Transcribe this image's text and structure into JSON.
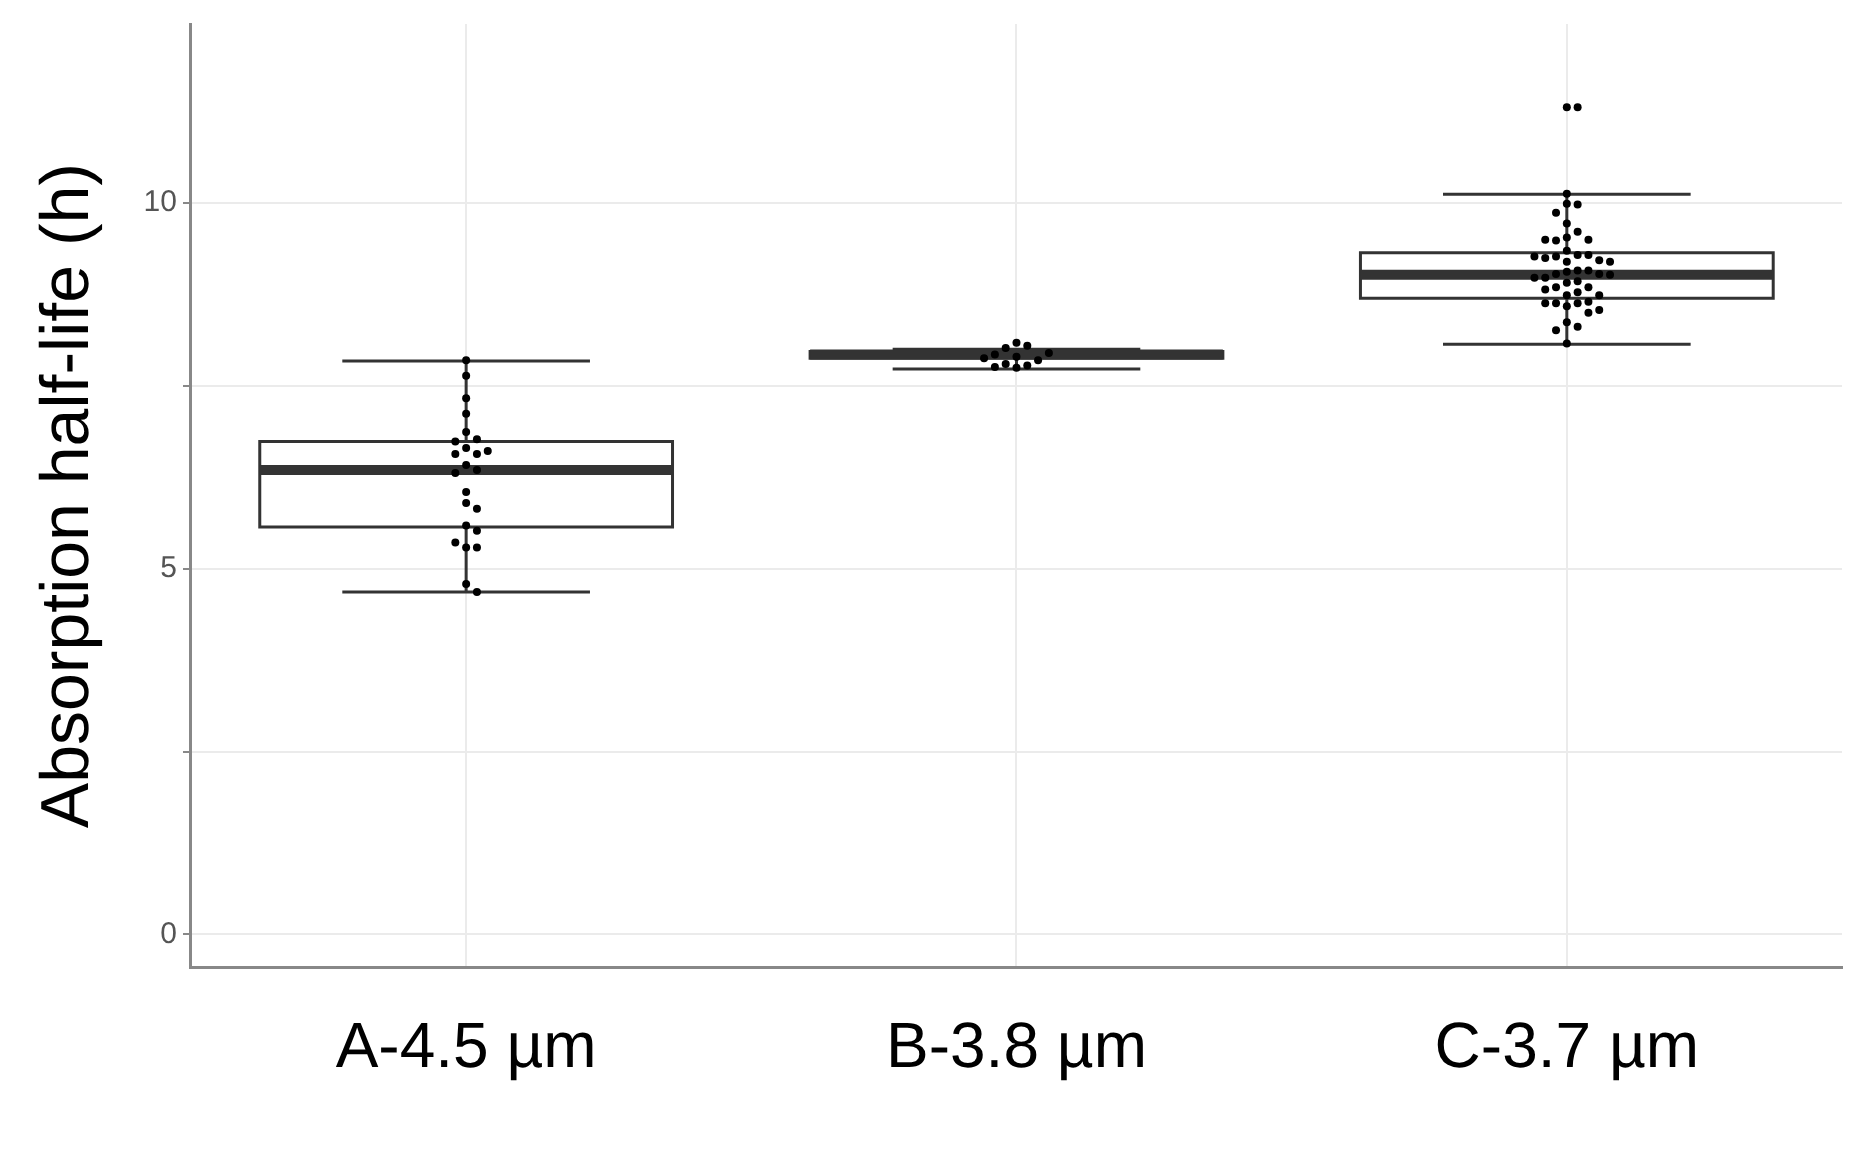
{
  "chart_data": {
    "type": "box",
    "ylabel": "Absorption half-life (h)",
    "categories": [
      "A-4.5 µm",
      "B-3.8 µm",
      "C-3.7 µm"
    ],
    "boxes": [
      {
        "low": 4.68,
        "q1": 5.57,
        "median": 6.35,
        "q3": 6.74,
        "high": 7.84
      },
      {
        "low": 7.73,
        "q1": 7.88,
        "median": 7.93,
        "q3": 7.97,
        "high": 8.0
      },
      {
        "low": 8.07,
        "q1": 8.7,
        "median": 9.02,
        "q3": 9.32,
        "high": 10.12,
        "outliers": [
          11.31,
          11.31
        ]
      }
    ],
    "series": [
      {
        "type": "scatter",
        "color": "#000000",
        "x": [
          "A-4.5 µm",
          "A-4.5 µm",
          "A-4.5 µm",
          "A-4.5 µm",
          "A-4.5 µm",
          "A-4.5 µm",
          "A-4.5 µm",
          "A-4.5 µm",
          "A-4.5 µm",
          "A-4.5 µm",
          "A-4.5 µm",
          "A-4.5 µm",
          "A-4.5 µm",
          "A-4.5 µm",
          "A-4.5 µm",
          "A-4.5 µm",
          "A-4.5 µm",
          "A-4.5 µm",
          "A-4.5 µm",
          "A-4.5 µm",
          "A-4.5 µm",
          "A-4.5 µm",
          "A-4.5 µm",
          "A-4.5 µm",
          "B-3.8 µm",
          "B-3.8 µm",
          "B-3.8 µm",
          "B-3.8 µm",
          "B-3.8 µm",
          "B-3.8 µm",
          "B-3.8 µm",
          "B-3.8 µm",
          "B-3.8 µm",
          "B-3.8 µm",
          "B-3.8 µm",
          "B-3.8 µm",
          "C-3.7 µm",
          "C-3.7 µm",
          "C-3.7 µm",
          "C-3.7 µm",
          "C-3.7 µm",
          "C-3.7 µm",
          "C-3.7 µm",
          "C-3.7 µm",
          "C-3.7 µm",
          "C-3.7 µm",
          "C-3.7 µm",
          "C-3.7 µm",
          "C-3.7 µm",
          "C-3.7 µm",
          "C-3.7 µm",
          "C-3.7 µm",
          "C-3.7 µm",
          "C-3.7 µm",
          "C-3.7 µm",
          "C-3.7 µm",
          "C-3.7 µm",
          "C-3.7 µm",
          "C-3.7 µm",
          "C-3.7 µm",
          "C-3.7 µm",
          "C-3.7 µm",
          "C-3.7 µm",
          "C-3.7 µm",
          "C-3.7 µm",
          "C-3.7 µm",
          "C-3.7 µm",
          "C-3.7 µm",
          "C-3.7 µm",
          "C-3.7 µm",
          "C-3.7 µm",
          "C-3.7 µm",
          "C-3.7 µm",
          "C-3.7 µm",
          "C-3.7 µm",
          "C-3.7 µm",
          "C-3.7 µm",
          "C-3.7 µm",
          "C-3.7 µm",
          "C-3.7 µm",
          "C-3.7 µm",
          "C-3.7 µm"
        ],
        "values": [
          7.85,
          7.64,
          7.33,
          7.12,
          6.87,
          6.77,
          6.74,
          6.65,
          6.57,
          6.61,
          6.57,
          6.42,
          6.35,
          6.31,
          6.05,
          5.9,
          5.82,
          5.59,
          5.52,
          5.29,
          5.29,
          5.36,
          4.79,
          4.68,
          8.09,
          8.05,
          8.02,
          7.75,
          7.78,
          7.8,
          7.85,
          7.9,
          7.93,
          7.95,
          7.88,
          7.76,
          10.13,
          9.99,
          9.98,
          9.87,
          9.72,
          9.61,
          9.53,
          9.49,
          9.5,
          9.5,
          9.35,
          9.29,
          9.27,
          9.29,
          9.25,
          9.22,
          9.27,
          9.2,
          9.2,
          9.08,
          9.06,
          9.03,
          9.08,
          8.98,
          9.03,
          8.98,
          8.93,
          8.91,
          9.02,
          8.85,
          8.74,
          8.85,
          8.82,
          8.78,
          8.74,
          8.63,
          8.63,
          8.59,
          8.65,
          8.63,
          8.5,
          8.54,
          8.37,
          8.31,
          8.26,
          8.08
        ]
      }
    ],
    "ylim": [
      -0.45,
      12.45
    ],
    "yticks": [
      0,
      {
        "value": 2.5,
        "label": null
      },
      5,
      {
        "value": 7.5,
        "label": null
      },
      10
    ],
    "grid": true,
    "legend": false,
    "marker": "circle"
  }
}
